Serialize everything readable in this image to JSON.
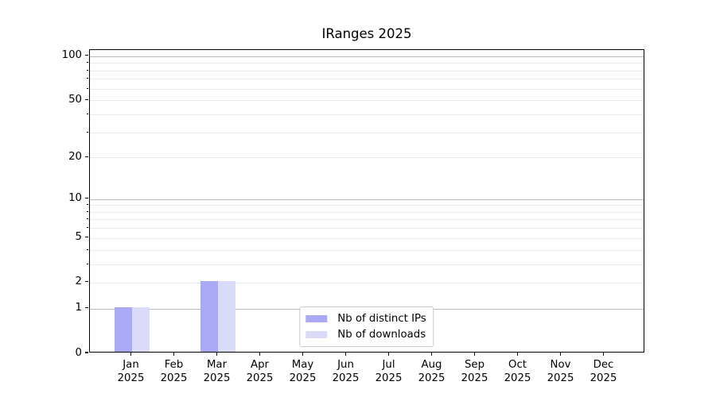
{
  "chart_data": {
    "type": "bar",
    "title": "IRanges 2025",
    "year": "2025",
    "categories": [
      "Jan",
      "Feb",
      "Mar",
      "Apr",
      "May",
      "Jun",
      "Jul",
      "Aug",
      "Sep",
      "Oct",
      "Nov",
      "Dec"
    ],
    "series": [
      {
        "name": "Nb of distinct IPs",
        "color": "#a9a9f6",
        "values": [
          1,
          0,
          2,
          0,
          0,
          0,
          0,
          0,
          0,
          0,
          0,
          0
        ]
      },
      {
        "name": "Nb of downloads",
        "color": "#dadaf9",
        "values": [
          1,
          0,
          2,
          0,
          0,
          0,
          0,
          0,
          0,
          0,
          0,
          0
        ]
      }
    ],
    "yscale": "log1p",
    "ylim": [
      0,
      110
    ],
    "yticks_labeled": [
      0,
      1,
      2,
      5,
      10,
      20,
      50,
      100
    ],
    "yticks_major_grid": [
      1,
      10,
      100
    ],
    "yticks_minor_grid": [
      2,
      3,
      4,
      5,
      6,
      7,
      8,
      9,
      20,
      30,
      40,
      50,
      60,
      70,
      80,
      90
    ],
    "grid": true,
    "legend_position": "lower center"
  },
  "colors": {
    "background": "#ffffff",
    "axis": "#000000",
    "major_grid": "#b9b9b9",
    "minor_grid": "#e9e9e9",
    "legend_border": "#cccccc",
    "text": "#000000"
  }
}
